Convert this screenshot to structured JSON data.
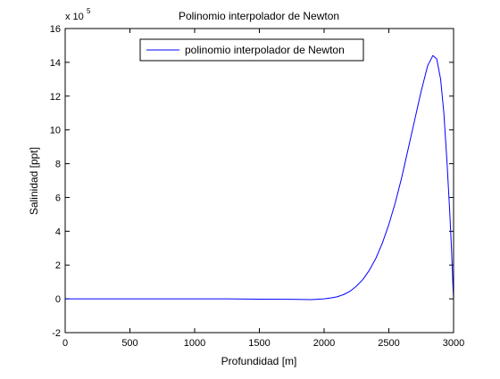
{
  "chart_data": {
    "type": "line",
    "title": "Polinomio interpolador de Newton",
    "xlabel": "Profundidad [m]",
    "ylabel": "Salinidad [ppt]",
    "y_scale_multiplier_label": "x 10",
    "y_scale_multiplier_exponent": "5",
    "xlim": [
      0,
      3000
    ],
    "ylim": [
      -2,
      16
    ],
    "y_units_factor": 100000,
    "x_ticks": [
      0,
      500,
      1000,
      1500,
      2000,
      2500,
      3000
    ],
    "y_ticks": [
      -2,
      0,
      2,
      4,
      6,
      8,
      10,
      12,
      14,
      16
    ],
    "grid": false,
    "box": true,
    "legend_position": "top",
    "series": [
      {
        "name": "polinomio interpolador de Newton",
        "color": "#0000ff",
        "points": [
          [
            0,
            0
          ],
          [
            250,
            0
          ],
          [
            500,
            0
          ],
          [
            750,
            0
          ],
          [
            1000,
            0
          ],
          [
            1250,
            0
          ],
          [
            1500,
            -0.02
          ],
          [
            1750,
            -0.03
          ],
          [
            1900,
            -0.05
          ],
          [
            2000,
            0
          ],
          [
            2050,
            0.05
          ],
          [
            2100,
            0.12
          ],
          [
            2150,
            0.25
          ],
          [
            2200,
            0.45
          ],
          [
            2250,
            0.75
          ],
          [
            2300,
            1.15
          ],
          [
            2350,
            1.7
          ],
          [
            2400,
            2.4
          ],
          [
            2450,
            3.3
          ],
          [
            2500,
            4.4
          ],
          [
            2550,
            5.7
          ],
          [
            2600,
            7.2
          ],
          [
            2650,
            8.9
          ],
          [
            2700,
            10.6
          ],
          [
            2750,
            12.3
          ],
          [
            2800,
            13.8
          ],
          [
            2840,
            14.4
          ],
          [
            2870,
            14.2
          ],
          [
            2900,
            13.0
          ],
          [
            2925,
            11.0
          ],
          [
            2950,
            8.0
          ],
          [
            2970,
            5.2
          ],
          [
            2985,
            2.8
          ],
          [
            2995,
            0.8
          ],
          [
            3000,
            0
          ]
        ]
      }
    ]
  }
}
